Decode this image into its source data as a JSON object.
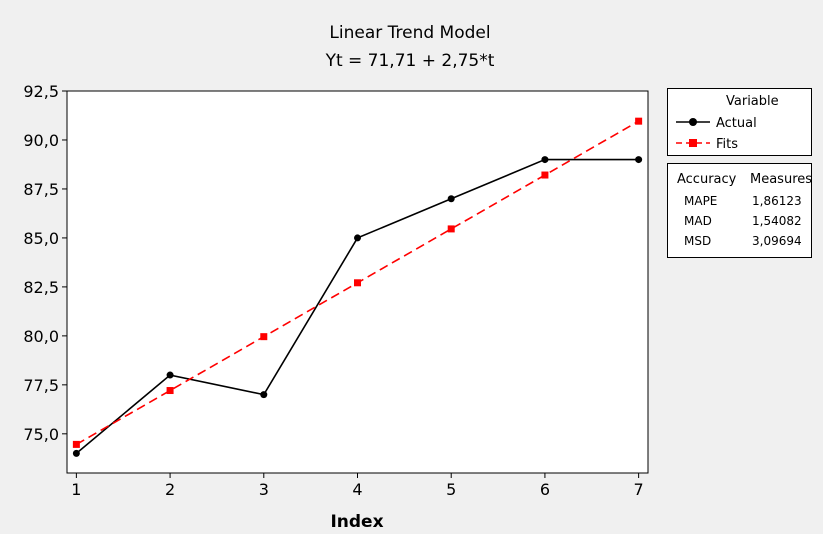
{
  "chart_data": {
    "type": "line",
    "title": "Linear Trend Model",
    "subtitle": "Yt = 71,71 + 2,75*t",
    "xlabel": "Index",
    "ylabel": "",
    "x": [
      1,
      2,
      3,
      4,
      5,
      6,
      7
    ],
    "x_ticks": [
      "1",
      "2",
      "3",
      "4",
      "5",
      "6",
      "7"
    ],
    "y_ticks": [
      "75,0",
      "77,5",
      "80,0",
      "82,5",
      "85,0",
      "87,5",
      "90,0",
      "92,5"
    ],
    "y_tick_values": [
      75.0,
      77.5,
      80.0,
      82.5,
      85.0,
      87.5,
      90.0,
      92.5
    ],
    "xlim": [
      0.9,
      7.1
    ],
    "ylim": [
      73.0,
      92.5
    ],
    "grid": false,
    "legend_position": "right",
    "series": [
      {
        "name": "Actual",
        "color": "#000000",
        "marker": "circle",
        "line": "solid",
        "values": [
          74,
          78,
          77,
          85,
          87,
          89,
          89
        ]
      },
      {
        "name": "Fits",
        "color": "#ff0000",
        "marker": "square",
        "line": "dashed",
        "values": [
          74.46,
          77.21,
          79.96,
          82.71,
          85.46,
          88.21,
          90.96
        ]
      }
    ]
  },
  "legend": {
    "title": "Variable",
    "items": [
      "Actual",
      "Fits"
    ]
  },
  "accuracy": {
    "title_left": "Accuracy",
    "title_right": "Measures",
    "rows": [
      {
        "name": "MAPE",
        "value": "1,86123"
      },
      {
        "name": "MAD",
        "value": "1,54082"
      },
      {
        "name": "MSD",
        "value": "3,09694"
      }
    ]
  }
}
